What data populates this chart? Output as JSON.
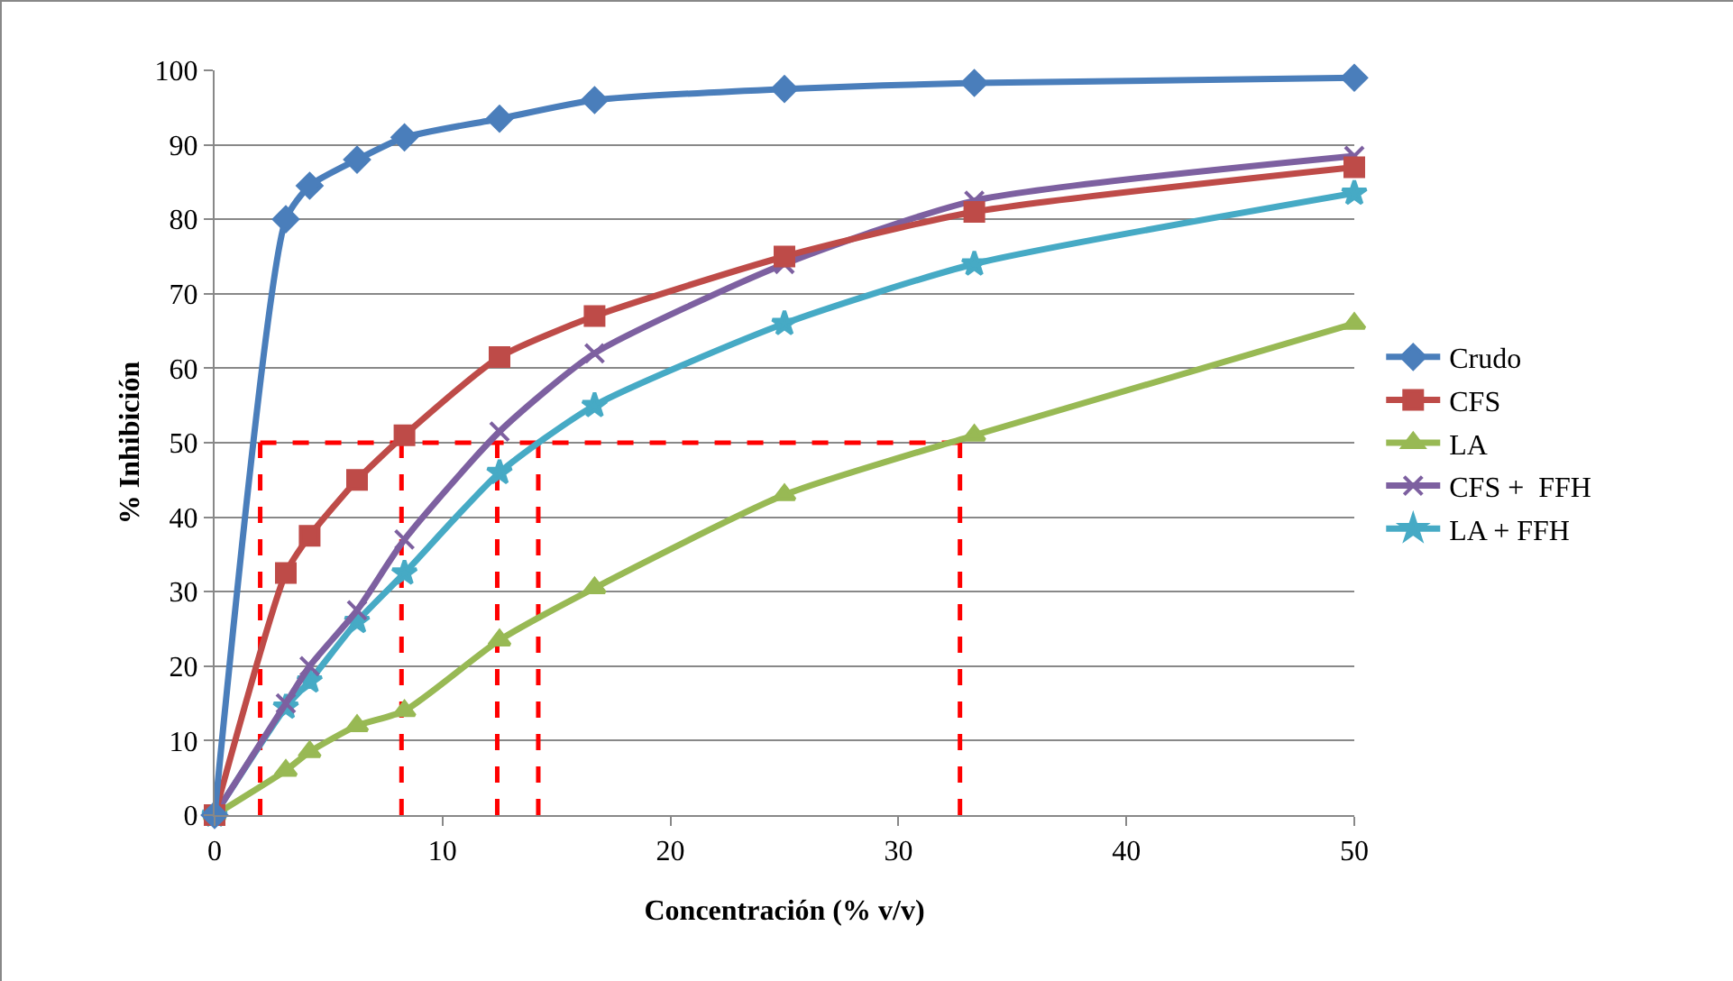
{
  "chart_data": {
    "type": "line",
    "xlabel": "Concentración (% v/v)",
    "ylabel": "% Inhibición",
    "x": [
      0,
      3.125,
      4.17,
      6.25,
      8.33,
      12.5,
      16.67,
      25,
      33.33,
      50
    ],
    "xlim": [
      0,
      50
    ],
    "xticks": [
      0,
      10,
      20,
      30,
      40,
      50
    ],
    "ylim": [
      0,
      100
    ],
    "yticks": [
      0,
      10,
      20,
      30,
      40,
      50,
      60,
      70,
      80,
      90,
      100
    ],
    "grid": "y",
    "legend": "right",
    "series": [
      {
        "name": "Crudo",
        "color": "#4a7ebb",
        "marker": "diamond",
        "values": [
          0,
          80,
          84.5,
          88,
          91,
          93.5,
          96,
          97.5,
          98.3,
          99
        ]
      },
      {
        "name": "CFS",
        "color": "#be4b48",
        "marker": "square",
        "values": [
          0,
          32.5,
          37.5,
          45,
          51,
          61.5,
          67,
          75,
          81,
          87
        ]
      },
      {
        "name": "LA",
        "color": "#98b954",
        "marker": "triangle",
        "values": [
          0,
          6,
          8.5,
          12,
          14,
          23.5,
          30.5,
          43,
          51,
          66
        ]
      },
      {
        "name": "CFS +  FFH",
        "color": "#7d60a0",
        "marker": "cross",
        "values": [
          0,
          15,
          20,
          27.5,
          37,
          51.5,
          62,
          74,
          82.5,
          88.5
        ]
      },
      {
        "name": "LA + FFH",
        "color": "#46aac5",
        "marker": "star",
        "values": [
          0,
          14.5,
          18,
          26,
          32.5,
          46,
          55,
          66,
          74,
          83.5
        ]
      },
      {
        "color": "#ff0000",
        "marker": "none",
        "line_style": "dashed",
        "x": [
          2,
          33,
          null,
          2,
          2,
          null,
          8.2,
          8.2,
          null,
          12.4,
          12.4,
          null,
          14.2,
          14.2,
          null,
          32.7,
          32.7
        ],
        "values": [
          50,
          50,
          null,
          0,
          50,
          null,
          0,
          50,
          null,
          0,
          50,
          null,
          0,
          50,
          null,
          0,
          50
        ]
      }
    ]
  }
}
